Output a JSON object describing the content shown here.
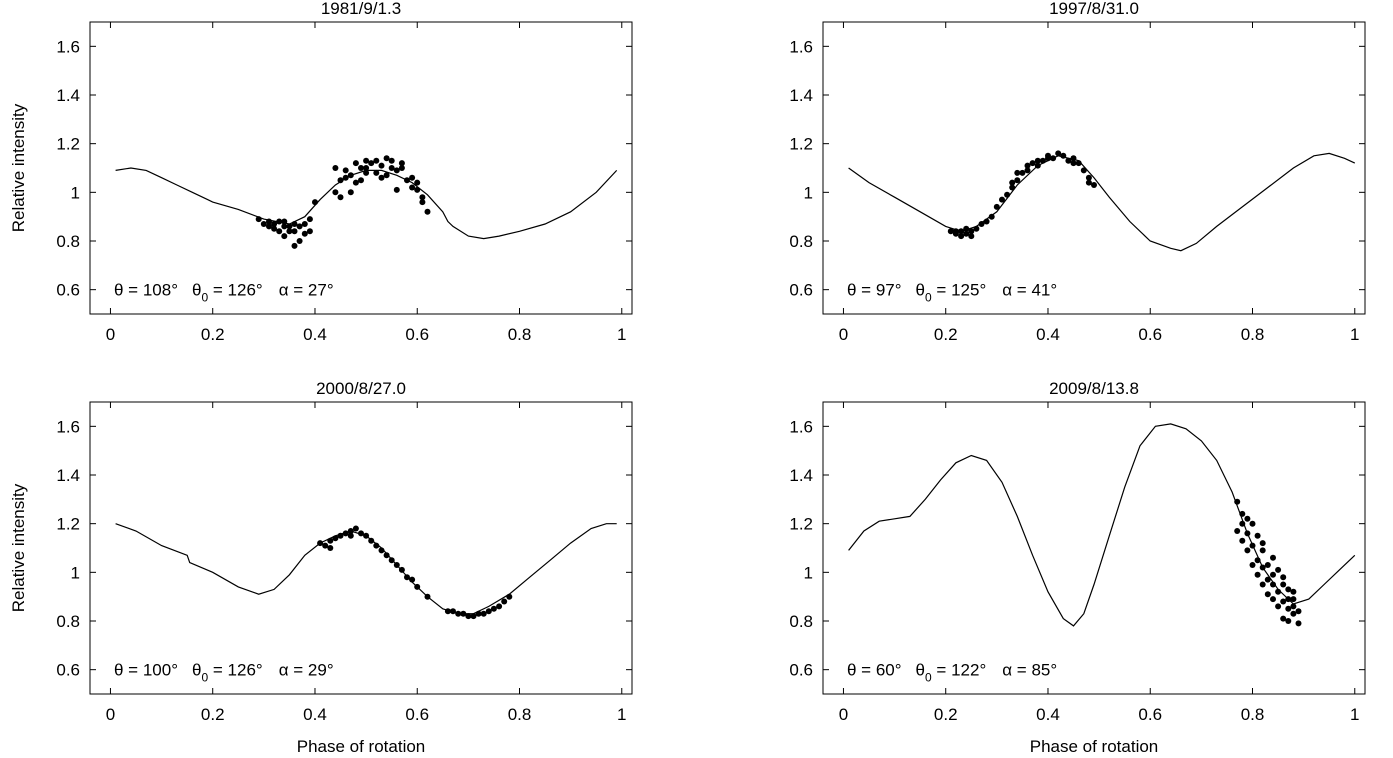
{
  "figure": {
    "ylabel": "Relative intensity",
    "xlabel": "Phase of rotation"
  },
  "chart_data": [
    {
      "type": "scatter",
      "title": "1981/9/1.3",
      "ylabel": "Relative intensity",
      "xlabel": "",
      "xlim": [
        -0.04,
        1.02
      ],
      "ylim": [
        0.5,
        1.7
      ],
      "xticks": [
        0,
        0.2,
        0.4,
        0.6,
        0.8,
        1
      ],
      "yticks": [
        0.6,
        0.8,
        1,
        1.2,
        1.4,
        1.6
      ],
      "annotation": {
        "theta": "θ = 108°",
        "theta0_base": "θ",
        "theta0_sub": "0",
        "theta0_val": " = 126°",
        "alpha": "α = 27°"
      },
      "series": [
        {
          "kind": "line",
          "x": [
            0.01,
            0.04,
            0.07,
            0.1,
            0.13,
            0.16,
            0.19,
            0.2,
            0.25,
            0.3,
            0.35,
            0.38,
            0.41,
            0.44,
            0.47,
            0.5,
            0.53,
            0.56,
            0.59,
            0.62,
            0.65,
            0.66,
            0.67,
            0.7,
            0.73,
            0.76,
            0.8,
            0.85,
            0.9,
            0.95,
            0.99
          ],
          "y": [
            1.09,
            1.1,
            1.09,
            1.06,
            1.03,
            1.0,
            0.97,
            0.96,
            0.93,
            0.89,
            0.87,
            0.9,
            0.97,
            1.03,
            1.07,
            1.09,
            1.09,
            1.07,
            1.04,
            0.99,
            0.92,
            0.88,
            0.86,
            0.82,
            0.81,
            0.82,
            0.84,
            0.87,
            0.92,
            1.0,
            1.09
          ]
        },
        {
          "kind": "points",
          "x": [
            0.29,
            0.3,
            0.31,
            0.31,
            0.32,
            0.32,
            0.33,
            0.33,
            0.34,
            0.34,
            0.34,
            0.35,
            0.35,
            0.36,
            0.36,
            0.36,
            0.37,
            0.37,
            0.38,
            0.38,
            0.39,
            0.39,
            0.4,
            0.44,
            0.44,
            0.45,
            0.45,
            0.46,
            0.46,
            0.47,
            0.47,
            0.48,
            0.48,
            0.49,
            0.49,
            0.5,
            0.5,
            0.5,
            0.51,
            0.52,
            0.52,
            0.53,
            0.53,
            0.54,
            0.54,
            0.55,
            0.55,
            0.56,
            0.56,
            0.57,
            0.57,
            0.58,
            0.59,
            0.59,
            0.6,
            0.6,
            0.61,
            0.61,
            0.62
          ],
          "y": [
            0.89,
            0.87,
            0.86,
            0.88,
            0.85,
            0.87,
            0.84,
            0.88,
            0.86,
            0.82,
            0.88,
            0.84,
            0.86,
            0.78,
            0.84,
            0.87,
            0.8,
            0.86,
            0.83,
            0.87,
            0.84,
            0.89,
            0.96,
            1.0,
            1.1,
            1.05,
            0.98,
            1.06,
            1.09,
            1.0,
            1.07,
            1.12,
            1.04,
            1.1,
            1.05,
            1.13,
            1.08,
            1.1,
            1.12,
            1.08,
            1.13,
            1.06,
            1.11,
            1.14,
            1.07,
            1.1,
            1.13,
            1.01,
            1.09,
            1.1,
            1.12,
            1.05,
            1.02,
            1.06,
            1.04,
            1.01,
            0.98,
            0.96,
            0.92
          ]
        }
      ]
    },
    {
      "type": "scatter",
      "title": "1997/8/31.0",
      "ylabel": "",
      "xlabel": "",
      "xlim": [
        -0.04,
        1.02
      ],
      "ylim": [
        0.5,
        1.7
      ],
      "xticks": [
        0,
        0.2,
        0.4,
        0.6,
        0.8,
        1
      ],
      "yticks": [
        0.6,
        0.8,
        1,
        1.2,
        1.4,
        1.6
      ],
      "annotation": {
        "theta": "θ = 97°",
        "theta0_base": "θ",
        "theta0_sub": "0",
        "theta0_val": " = 125°",
        "alpha": "α = 41°"
      },
      "series": [
        {
          "kind": "line",
          "x": [
            0.01,
            0.05,
            0.1,
            0.15,
            0.2,
            0.23,
            0.26,
            0.3,
            0.34,
            0.38,
            0.42,
            0.46,
            0.49,
            0.52,
            0.56,
            0.6,
            0.64,
            0.66,
            0.69,
            0.73,
            0.78,
            0.83,
            0.88,
            0.92,
            0.95,
            0.98,
            1.0
          ],
          "y": [
            1.1,
            1.04,
            0.98,
            0.92,
            0.86,
            0.84,
            0.86,
            0.92,
            1.03,
            1.11,
            1.15,
            1.13,
            1.06,
            0.98,
            0.88,
            0.8,
            0.77,
            0.76,
            0.79,
            0.86,
            0.94,
            1.02,
            1.1,
            1.15,
            1.16,
            1.14,
            1.12
          ]
        },
        {
          "kind": "points",
          "x": [
            0.21,
            0.22,
            0.22,
            0.23,
            0.23,
            0.24,
            0.24,
            0.25,
            0.25,
            0.26,
            0.27,
            0.28,
            0.29,
            0.3,
            0.31,
            0.32,
            0.33,
            0.33,
            0.34,
            0.34,
            0.35,
            0.36,
            0.36,
            0.37,
            0.38,
            0.38,
            0.39,
            0.4,
            0.4,
            0.41,
            0.42,
            0.43,
            0.44,
            0.45,
            0.45,
            0.46,
            0.47,
            0.48,
            0.48,
            0.49
          ],
          "y": [
            0.84,
            0.84,
            0.83,
            0.84,
            0.82,
            0.85,
            0.83,
            0.84,
            0.82,
            0.85,
            0.87,
            0.88,
            0.9,
            0.94,
            0.97,
            0.99,
            1.02,
            1.04,
            1.05,
            1.08,
            1.08,
            1.09,
            1.11,
            1.12,
            1.13,
            1.11,
            1.13,
            1.14,
            1.15,
            1.14,
            1.16,
            1.15,
            1.13,
            1.12,
            1.14,
            1.12,
            1.09,
            1.06,
            1.04,
            1.03
          ]
        }
      ]
    },
    {
      "type": "scatter",
      "title": "2000/8/27.0",
      "ylabel": "Relative intensity",
      "xlabel": "Phase of rotation",
      "xlim": [
        -0.04,
        1.02
      ],
      "ylim": [
        0.5,
        1.7
      ],
      "xticks": [
        0,
        0.2,
        0.4,
        0.6,
        0.8,
        1
      ],
      "yticks": [
        0.6,
        0.8,
        1,
        1.2,
        1.4,
        1.6
      ],
      "annotation": {
        "theta": "θ = 100°",
        "theta0_base": "θ",
        "theta0_sub": "0",
        "theta0_val": " = 126°",
        "alpha": "α = 29°"
      },
      "series": [
        {
          "kind": "line",
          "x": [
            0.01,
            0.05,
            0.1,
            0.15,
            0.155,
            0.2,
            0.25,
            0.29,
            0.32,
            0.35,
            0.38,
            0.41,
            0.44,
            0.47,
            0.5,
            0.53,
            0.56,
            0.59,
            0.62,
            0.65,
            0.68,
            0.71,
            0.74,
            0.78,
            0.82,
            0.86,
            0.9,
            0.94,
            0.97,
            0.99
          ],
          "y": [
            1.2,
            1.17,
            1.11,
            1.07,
            1.04,
            1.0,
            0.94,
            0.91,
            0.93,
            0.99,
            1.07,
            1.12,
            1.15,
            1.17,
            1.15,
            1.1,
            1.03,
            0.96,
            0.9,
            0.85,
            0.83,
            0.83,
            0.86,
            0.91,
            0.98,
            1.05,
            1.12,
            1.18,
            1.2,
            1.2
          ]
        },
        {
          "kind": "points",
          "x": [
            0.41,
            0.42,
            0.43,
            0.43,
            0.44,
            0.45,
            0.46,
            0.47,
            0.47,
            0.48,
            0.49,
            0.5,
            0.51,
            0.52,
            0.53,
            0.54,
            0.55,
            0.56,
            0.57,
            0.58,
            0.59,
            0.6,
            0.62,
            0.66,
            0.67,
            0.68,
            0.69,
            0.7,
            0.71,
            0.72,
            0.73,
            0.74,
            0.75,
            0.76,
            0.77,
            0.78
          ],
          "y": [
            1.12,
            1.11,
            1.13,
            1.1,
            1.14,
            1.15,
            1.16,
            1.17,
            1.15,
            1.18,
            1.16,
            1.15,
            1.13,
            1.11,
            1.09,
            1.07,
            1.05,
            1.03,
            1.01,
            0.98,
            0.97,
            0.94,
            0.9,
            0.84,
            0.84,
            0.83,
            0.83,
            0.82,
            0.82,
            0.83,
            0.83,
            0.84,
            0.85,
            0.86,
            0.88,
            0.9
          ]
        }
      ]
    },
    {
      "type": "scatter",
      "title": "2009/8/13.8",
      "ylabel": "",
      "xlabel": "Phase of rotation",
      "xlim": [
        -0.04,
        1.02
      ],
      "ylim": [
        0.5,
        1.7
      ],
      "xticks": [
        0,
        0.2,
        0.4,
        0.6,
        0.8,
        1
      ],
      "yticks": [
        0.6,
        0.8,
        1,
        1.2,
        1.4,
        1.6
      ],
      "annotation": {
        "theta": "θ = 60°",
        "theta0_base": "θ",
        "theta0_sub": "0",
        "theta0_val": " = 122°",
        "alpha": "α = 85°"
      },
      "series": [
        {
          "kind": "line",
          "x": [
            0.01,
            0.04,
            0.07,
            0.1,
            0.13,
            0.16,
            0.19,
            0.22,
            0.25,
            0.28,
            0.31,
            0.34,
            0.37,
            0.4,
            0.43,
            0.45,
            0.47,
            0.49,
            0.52,
            0.55,
            0.58,
            0.61,
            0.64,
            0.67,
            0.7,
            0.73,
            0.76,
            0.79,
            0.82,
            0.85,
            0.88,
            0.91,
            0.94,
            0.97,
            1.0
          ],
          "y": [
            1.09,
            1.17,
            1.21,
            1.22,
            1.23,
            1.3,
            1.38,
            1.45,
            1.48,
            1.46,
            1.37,
            1.23,
            1.07,
            0.92,
            0.81,
            0.78,
            0.83,
            0.95,
            1.15,
            1.35,
            1.52,
            1.6,
            1.61,
            1.59,
            1.54,
            1.46,
            1.33,
            1.16,
            1.02,
            0.93,
            0.87,
            0.89,
            0.95,
            1.01,
            1.07
          ]
        },
        {
          "kind": "points",
          "x": [
            0.77,
            0.77,
            0.78,
            0.78,
            0.78,
            0.79,
            0.79,
            0.79,
            0.8,
            0.8,
            0.8,
            0.81,
            0.81,
            0.81,
            0.82,
            0.82,
            0.82,
            0.82,
            0.83,
            0.83,
            0.83,
            0.84,
            0.84,
            0.84,
            0.84,
            0.85,
            0.85,
            0.85,
            0.86,
            0.86,
            0.86,
            0.86,
            0.87,
            0.87,
            0.87,
            0.87,
            0.88,
            0.88,
            0.88,
            0.88,
            0.89,
            0.89
          ],
          "y": [
            1.29,
            1.17,
            1.24,
            1.13,
            1.2,
            1.22,
            1.09,
            1.16,
            1.2,
            1.11,
            1.03,
            1.15,
            1.05,
            0.99,
            1.09,
            1.02,
            0.95,
            1.12,
            1.03,
            0.97,
            0.91,
            1.06,
            0.95,
            0.89,
            0.99,
            1.01,
            0.92,
            0.86,
            0.95,
            0.88,
            0.81,
            0.98,
            0.93,
            0.85,
            0.89,
            0.8,
            0.92,
            0.86,
            0.83,
            0.89,
            0.84,
            0.79
          ]
        }
      ]
    }
  ]
}
